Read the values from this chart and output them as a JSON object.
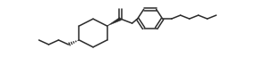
{
  "bg_color": "#ffffff",
  "line_color": "#2b2b2b",
  "line_width": 1.1,
  "figsize": [
    2.86,
    0.74
  ],
  "dpi": 100,
  "xlim": [
    0,
    286
  ],
  "ylim": [
    0,
    74
  ]
}
